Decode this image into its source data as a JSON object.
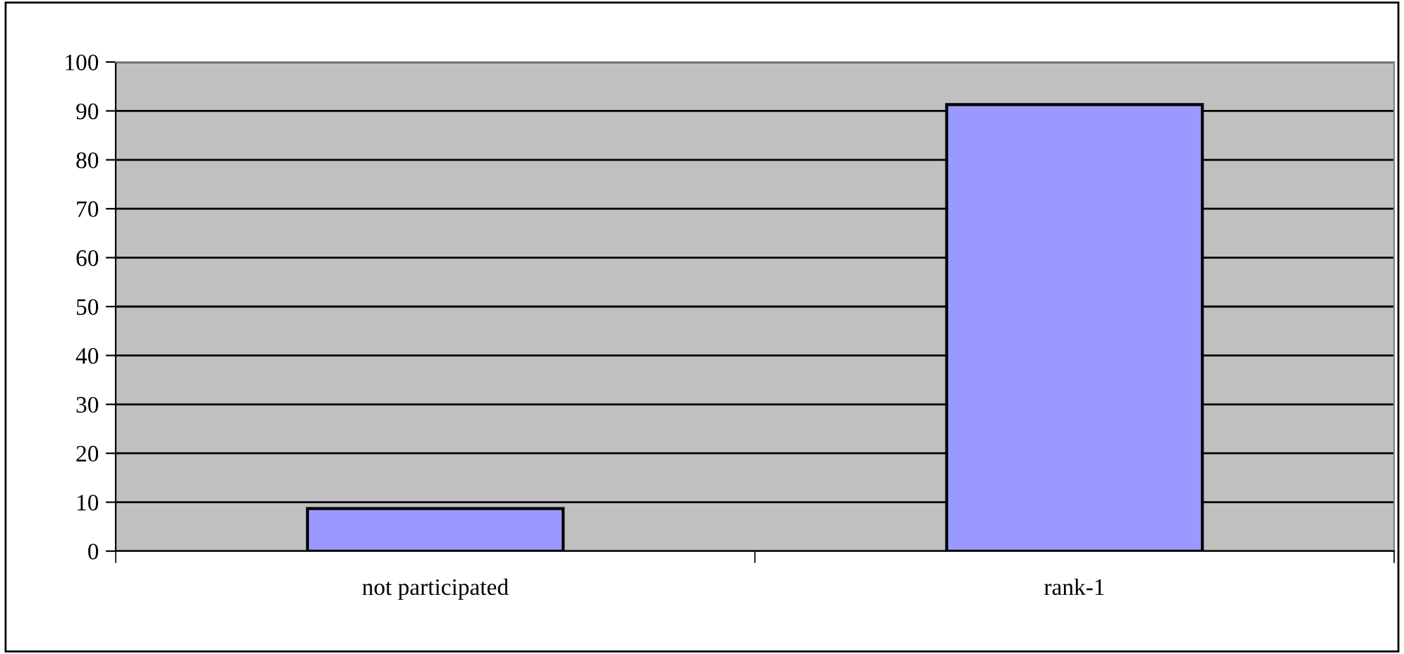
{
  "chart_data": {
    "type": "bar",
    "categories": [
      "not participated",
      "rank-1"
    ],
    "values": [
      8.7,
      91.3
    ],
    "color": "#9999ff",
    "ylim": [
      0,
      100
    ],
    "yticks": [
      0,
      10,
      20,
      30,
      40,
      50,
      60,
      70,
      80,
      90,
      100
    ],
    "grid": "y",
    "legend": false
  }
}
